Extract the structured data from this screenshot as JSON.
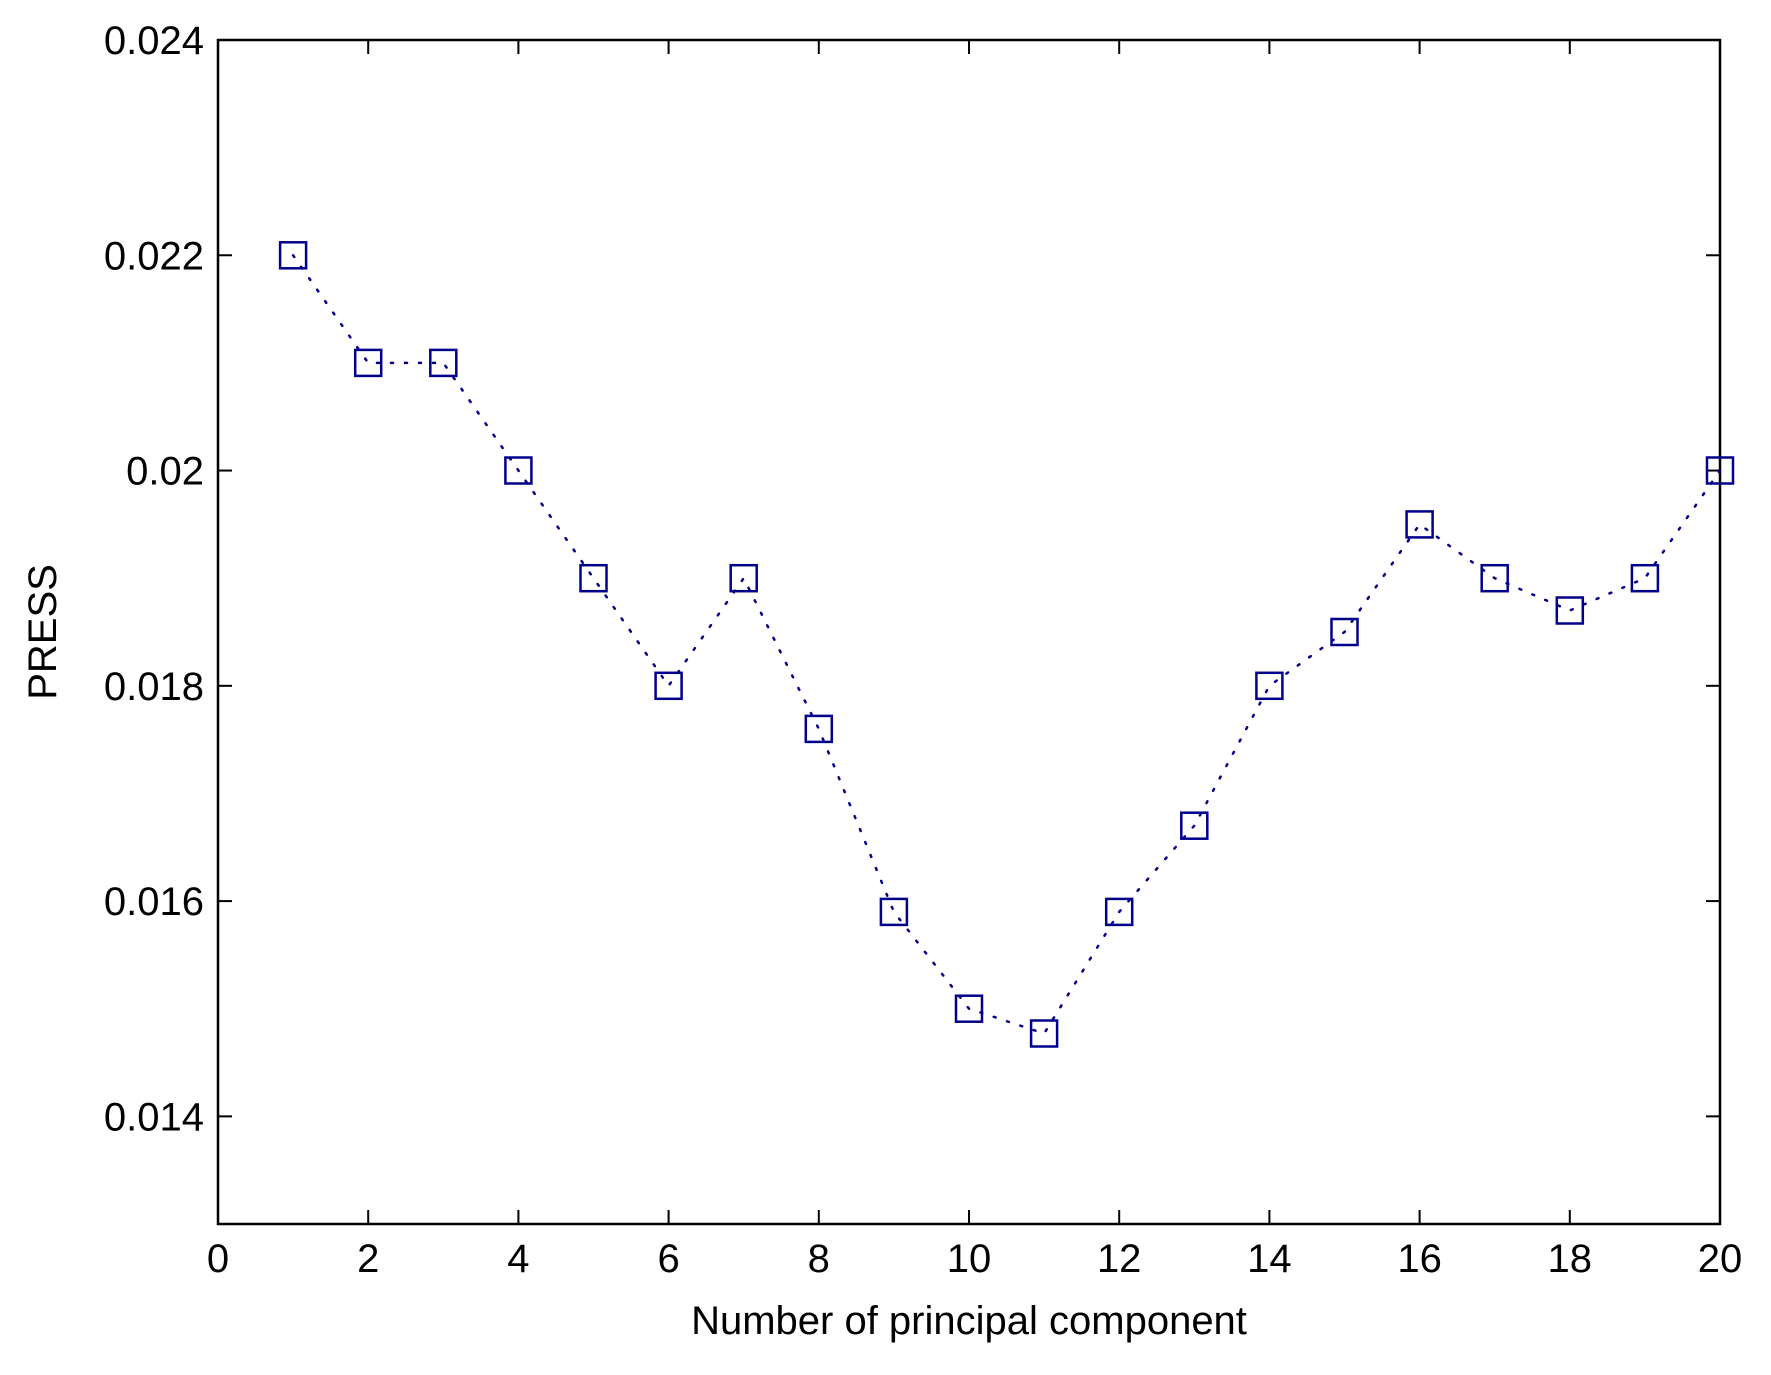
{
  "chart_data": {
    "type": "scatter",
    "title": "",
    "xlabel": "Number of principal component",
    "ylabel": "PRESS",
    "xlim": [
      0,
      20
    ],
    "ylim": [
      0.013,
      0.024
    ],
    "x_ticks": [
      0,
      2,
      4,
      6,
      8,
      10,
      12,
      14,
      16,
      18,
      20
    ],
    "x_tick_labels": [
      "0",
      "2",
      "4",
      "6",
      "8",
      "10",
      "12",
      "14",
      "16",
      "18",
      "20"
    ],
    "y_ticks": [
      0.014,
      0.016,
      0.018,
      0.02,
      0.022,
      0.024
    ],
    "y_tick_labels": [
      "0.014",
      "0.016",
      "0.018",
      "0.02",
      "0.022",
      "0.024"
    ],
    "grid": false,
    "legend": "none",
    "series": [
      {
        "marker": "square",
        "line_style": "dotted",
        "color": "#00008b",
        "x": [
          1,
          2,
          3,
          4,
          5,
          6,
          7,
          8,
          9,
          10,
          11,
          12,
          13,
          14,
          15,
          16,
          17,
          18,
          19,
          20
        ],
        "y": [
          0.022,
          0.021,
          0.021,
          0.02,
          0.019,
          0.018,
          0.019,
          0.0176,
          0.0159,
          0.015,
          0.01477,
          0.0159,
          0.0167,
          0.018,
          0.0185,
          0.0195,
          0.019,
          0.0187,
          0.019,
          0.02
        ]
      }
    ]
  }
}
